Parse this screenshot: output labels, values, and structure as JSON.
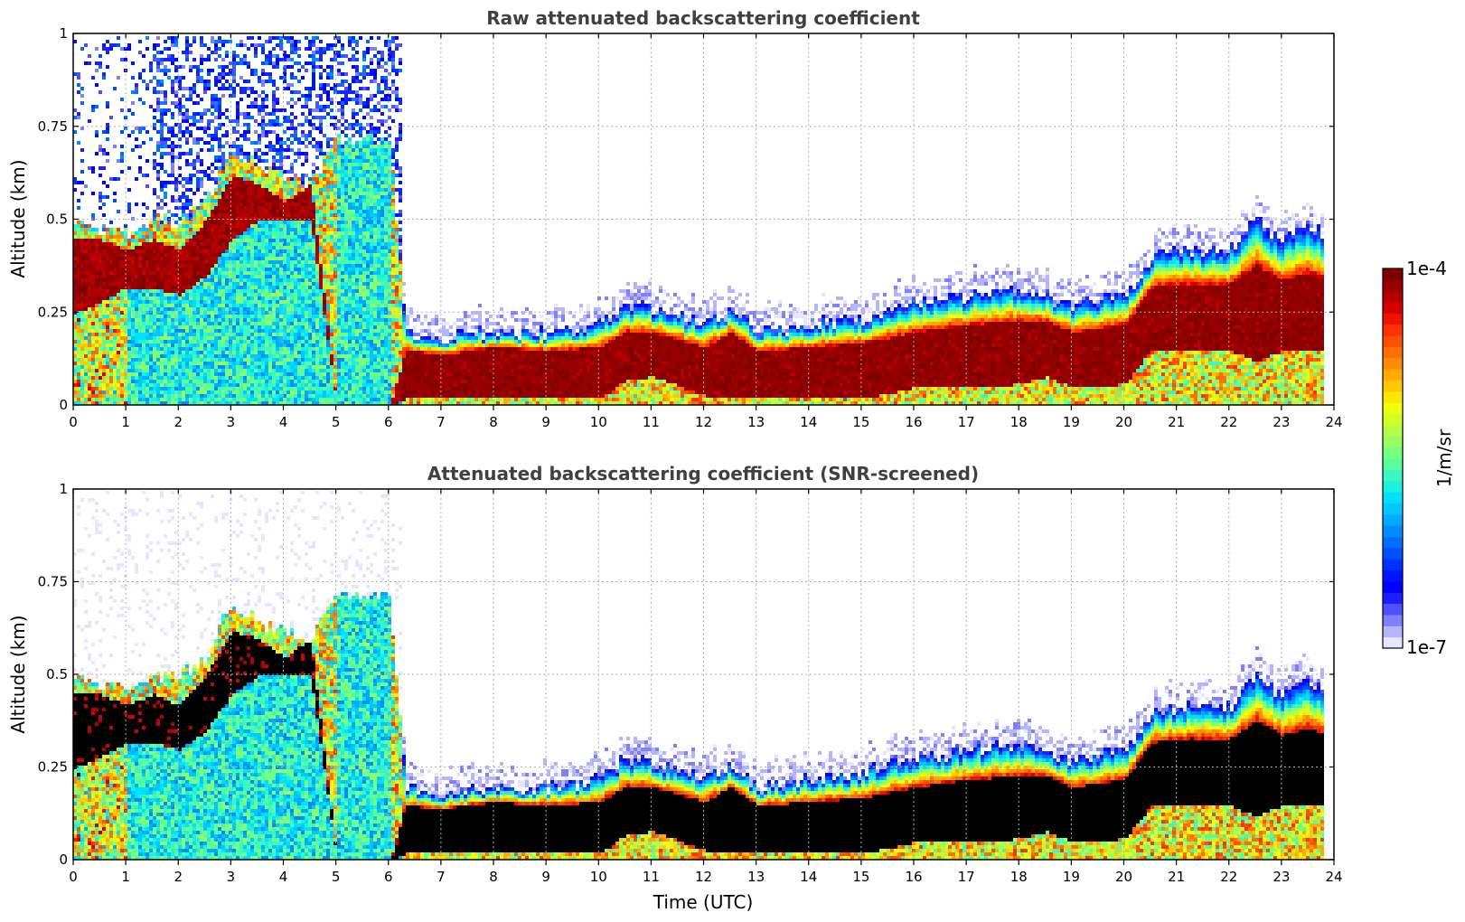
{
  "chart_data": [
    {
      "type": "heatmap",
      "title": "Raw attenuated backscattering coefficient",
      "xlabel": "",
      "ylabel": "Altitude (km)",
      "xlim": [
        0,
        24
      ],
      "ylim": [
        0,
        1
      ],
      "x_ticks": [
        "0",
        "1",
        "2",
        "3",
        "4",
        "5",
        "6",
        "7",
        "8",
        "9",
        "10",
        "11",
        "12",
        "13",
        "14",
        "15",
        "16",
        "17",
        "18",
        "19",
        "20",
        "21",
        "22",
        "23",
        "24"
      ],
      "y_ticks": [
        "0",
        "0.25",
        "0.5",
        "0.75",
        "1"
      ],
      "y_tick_values": [
        0,
        0.25,
        0.5,
        0.75,
        1
      ],
      "grid": true,
      "screened": false,
      "layer_profile": {
        "time_utc": [
          0,
          0.5,
          1,
          1.5,
          2,
          2.5,
          3,
          3.5,
          4,
          4.5,
          5,
          5.5,
          6,
          6.3,
          7,
          8,
          9,
          10,
          10.5,
          11,
          12,
          12.5,
          13,
          14,
          15,
          16,
          17,
          18,
          18.5,
          19,
          20,
          20.5,
          21,
          22,
          22.5,
          23,
          23.5,
          23.8
        ],
        "top_km": [
          0.5,
          0.48,
          0.47,
          0.5,
          0.5,
          0.55,
          0.7,
          0.65,
          0.62,
          0.6,
          0.72,
          0.72,
          0.72,
          0.2,
          0.19,
          0.2,
          0.2,
          0.22,
          0.28,
          0.26,
          0.22,
          0.26,
          0.2,
          0.22,
          0.24,
          0.28,
          0.3,
          0.32,
          0.3,
          0.27,
          0.3,
          0.4,
          0.42,
          0.42,
          0.5,
          0.45,
          0.5,
          0.45
        ],
        "core_top_km": [
          0.45,
          0.45,
          0.42,
          0.45,
          0.42,
          0.5,
          0.62,
          0.6,
          0.55,
          0.6,
          0.0,
          0.0,
          0.0,
          0.15,
          0.14,
          0.16,
          0.15,
          0.16,
          0.2,
          0.2,
          0.16,
          0.2,
          0.15,
          0.16,
          0.17,
          0.2,
          0.22,
          0.23,
          0.23,
          0.2,
          0.22,
          0.32,
          0.33,
          0.33,
          0.38,
          0.34,
          0.36,
          0.34
        ],
        "core_bottom_km": [
          0.25,
          0.28,
          0.32,
          0.32,
          0.3,
          0.35,
          0.45,
          0.5,
          0.5,
          0.5,
          0.0,
          0.0,
          0.0,
          0.02,
          0.02,
          0.02,
          0.02,
          0.02,
          0.07,
          0.08,
          0.03,
          0.02,
          0.02,
          0.02,
          0.02,
          0.05,
          0.05,
          0.06,
          0.08,
          0.05,
          0.06,
          0.15,
          0.15,
          0.15,
          0.12,
          0.15,
          0.15,
          0.15
        ]
      }
    },
    {
      "type": "heatmap",
      "title": "Attenuated backscattering coefficient (SNR-screened)",
      "xlabel": "Time (UTC)",
      "ylabel": "Altitude (km)",
      "xlim": [
        0,
        24
      ],
      "ylim": [
        0,
        1
      ],
      "x_ticks": [
        "0",
        "1",
        "2",
        "3",
        "4",
        "5",
        "6",
        "7",
        "8",
        "9",
        "10",
        "11",
        "12",
        "13",
        "14",
        "15",
        "16",
        "17",
        "18",
        "19",
        "20",
        "21",
        "22",
        "23",
        "24"
      ],
      "y_ticks": [
        "0",
        "0.25",
        "0.5",
        "0.75",
        "1"
      ],
      "y_tick_values": [
        0,
        0.25,
        0.5,
        0.75,
        1
      ],
      "grid": true,
      "screened": true
    }
  ],
  "colorbar": {
    "label": "1/m/sr",
    "max_label": "1e-4",
    "min_label": "1e-7",
    "scale": "log",
    "range": [
      1e-07,
      0.0001
    ],
    "colors": [
      "#e6e6ff",
      "#b4b4ff",
      "#8080ff",
      "#5050ff",
      "#1e1eff",
      "#0000ff",
      "#0014ff",
      "#0032ff",
      "#0050ff",
      "#006eff",
      "#008cff",
      "#00aaff",
      "#00c8ff",
      "#00e0ff",
      "#1ef0e0",
      "#3cf8c0",
      "#5afca0",
      "#78ff80",
      "#96ff64",
      "#b4ff46",
      "#d2ff28",
      "#f0ff0a",
      "#ffe600",
      "#ffc800",
      "#ffaa00",
      "#ff8c00",
      "#ff6e00",
      "#ff5000",
      "#ff3200",
      "#f01400",
      "#d20000",
      "#b40000",
      "#960000",
      "#800000"
    ],
    "saturation_color_screened": "#000000"
  }
}
